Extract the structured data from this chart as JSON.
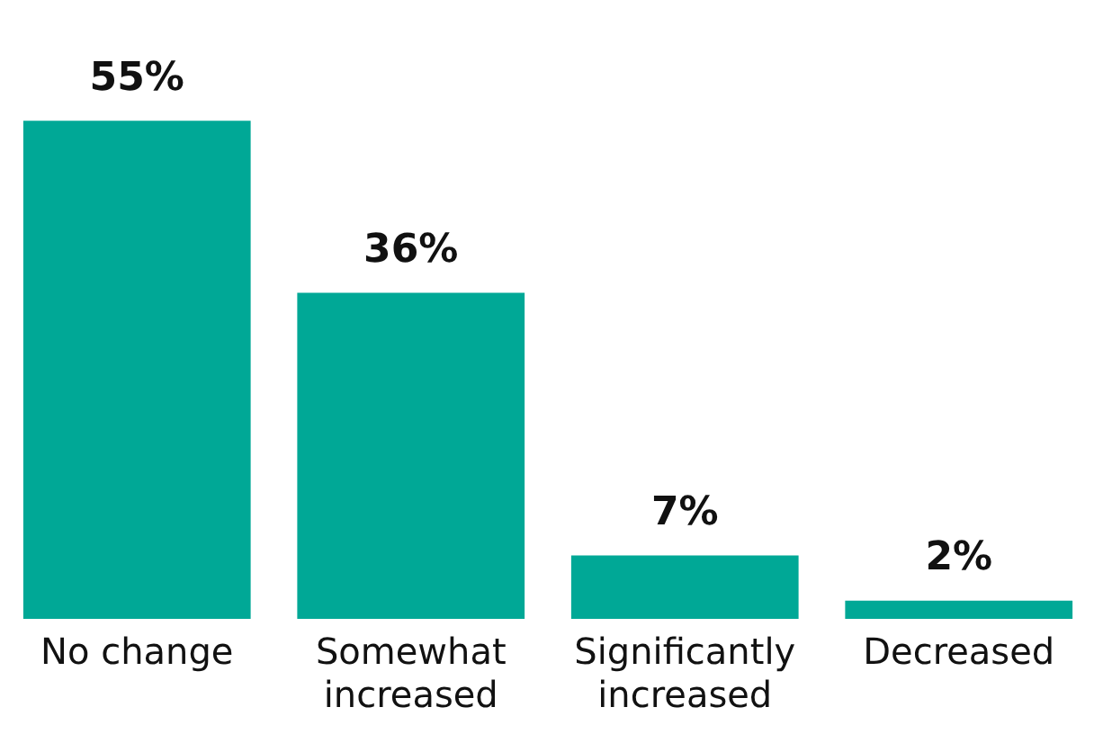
{
  "chart_data": {
    "type": "bar",
    "categories": [
      "No change",
      "Somewhat increased",
      "Significantly increased",
      "Decreased"
    ],
    "values": [
      55,
      36,
      7,
      2
    ],
    "color": "#00a896",
    "data_labels": true,
    "value_labels": [
      "55%",
      "36%",
      "7%",
      "2%"
    ],
    "grid": false,
    "legend": false,
    "tick_labels": "x"
  }
}
